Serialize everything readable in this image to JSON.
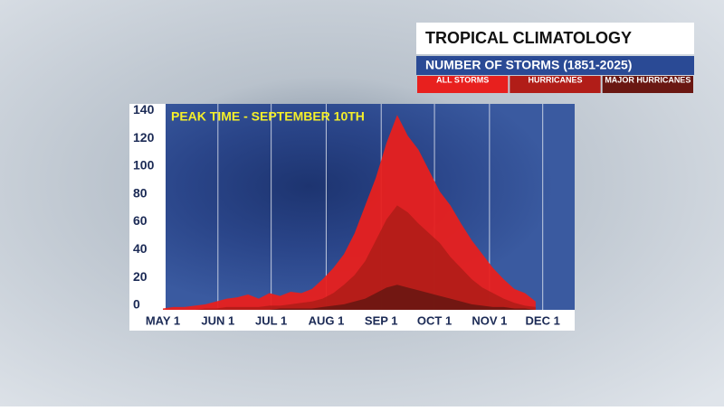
{
  "chart_data": {
    "type": "area",
    "title": "TROPICAL CLIMATOLOGY",
    "subtitle": "NUMBER OF STORMS (1851-2025)",
    "annotation": "PEAK TIME - SEPTEMBER 10TH",
    "x": [
      0,
      6,
      12,
      18,
      24,
      30,
      36,
      42,
      48,
      54,
      60,
      66,
      72,
      78,
      84,
      90,
      96,
      102,
      108,
      114,
      120,
      126,
      132,
      138,
      144,
      150,
      156,
      162,
      168,
      174,
      180,
      186,
      192,
      198,
      204,
      210
    ],
    "series": [
      {
        "name": "ALL STORMS",
        "color": "#e8201e",
        "values": [
          1,
          2,
          2,
          3,
          4,
          6,
          8,
          9,
          11,
          8,
          12,
          10,
          13,
          12,
          15,
          22,
          30,
          40,
          55,
          75,
          95,
          120,
          140,
          125,
          115,
          100,
          85,
          75,
          62,
          50,
          40,
          30,
          22,
          15,
          12,
          6
        ]
      },
      {
        "name": "HURRICANES",
        "color": "#b11d18",
        "values": [
          0,
          0,
          0,
          0,
          1,
          1,
          2,
          2,
          2,
          2,
          3,
          3,
          4,
          5,
          6,
          8,
          12,
          18,
          25,
          35,
          50,
          65,
          75,
          70,
          62,
          55,
          48,
          38,
          30,
          22,
          16,
          12,
          8,
          5,
          3,
          2
        ]
      },
      {
        "name": "MAJOR HURRICANES",
        "color": "#6a1712",
        "values": [
          0,
          0,
          0,
          0,
          0,
          0,
          0,
          0,
          0,
          0,
          0,
          1,
          1,
          1,
          1,
          2,
          3,
          4,
          6,
          8,
          12,
          16,
          18,
          16,
          14,
          12,
          10,
          8,
          6,
          4,
          3,
          2,
          2,
          1,
          1,
          0
        ]
      }
    ],
    "xlim": [
      0,
      232
    ],
    "ylim": [
      0,
      146
    ],
    "xticks": [
      {
        "value": 0,
        "label": "MAY 1"
      },
      {
        "value": 31,
        "label": "JUN 1"
      },
      {
        "value": 61,
        "label": "JUL 1"
      },
      {
        "value": 92,
        "label": "AUG 1"
      },
      {
        "value": 123,
        "label": "SEP 1"
      },
      {
        "value": 153,
        "label": "OCT 1"
      },
      {
        "value": 184,
        "label": "NOV 1"
      },
      {
        "value": 214,
        "label": "DEC 1"
      }
    ],
    "yticks": [
      0,
      20,
      40,
      60,
      80,
      100,
      120,
      140
    ],
    "grid": true
  }
}
